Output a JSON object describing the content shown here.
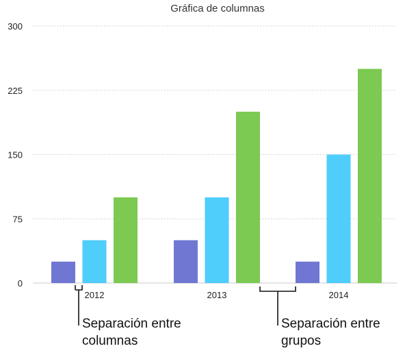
{
  "chart_data": {
    "type": "bar",
    "title": "Gráfica de columnas",
    "xlabel": "",
    "ylabel": "",
    "categories": [
      "2012",
      "2013",
      "2014"
    ],
    "series": [
      {
        "color": "#7077d3",
        "values": [
          25,
          50,
          25
        ]
      },
      {
        "color": "#4fcdfb",
        "values": [
          50,
          100,
          150
        ]
      },
      {
        "color": "#7cca52",
        "values": [
          100,
          200,
          250
        ]
      }
    ],
    "ylim": [
      0,
      300
    ],
    "yticks": [
      0,
      75,
      150,
      225,
      300
    ],
    "grid": true,
    "legend": "none",
    "annotations": [
      {
        "id": "column-gap",
        "lines": [
          "Separación entre",
          "columnas"
        ]
      },
      {
        "id": "group-gap",
        "lines": [
          "Separación entre",
          "grupos"
        ]
      }
    ]
  }
}
